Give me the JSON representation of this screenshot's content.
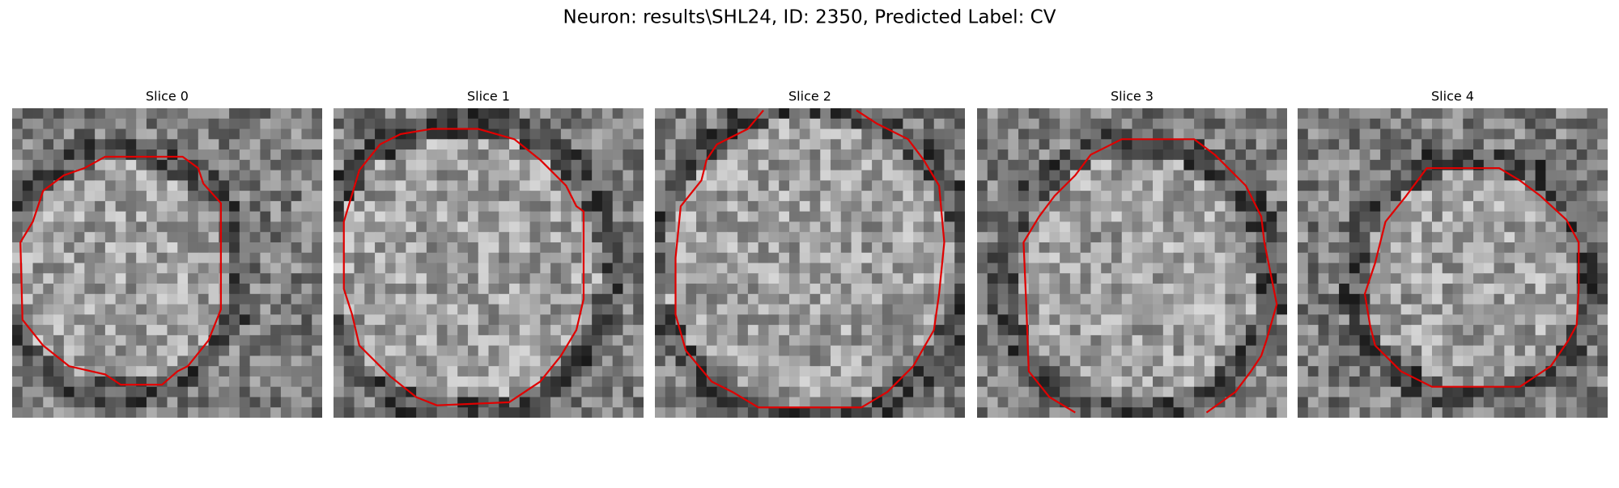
{
  "title": "Neuron: results\\SHL24, ID: 2350, Predicted Label: CV",
  "slices": [
    {
      "title": "Slice 0"
    },
    {
      "title": "Slice 1"
    },
    {
      "title": "Slice 2"
    },
    {
      "title": "Slice 3"
    },
    {
      "title": "Slice 4"
    }
  ]
}
